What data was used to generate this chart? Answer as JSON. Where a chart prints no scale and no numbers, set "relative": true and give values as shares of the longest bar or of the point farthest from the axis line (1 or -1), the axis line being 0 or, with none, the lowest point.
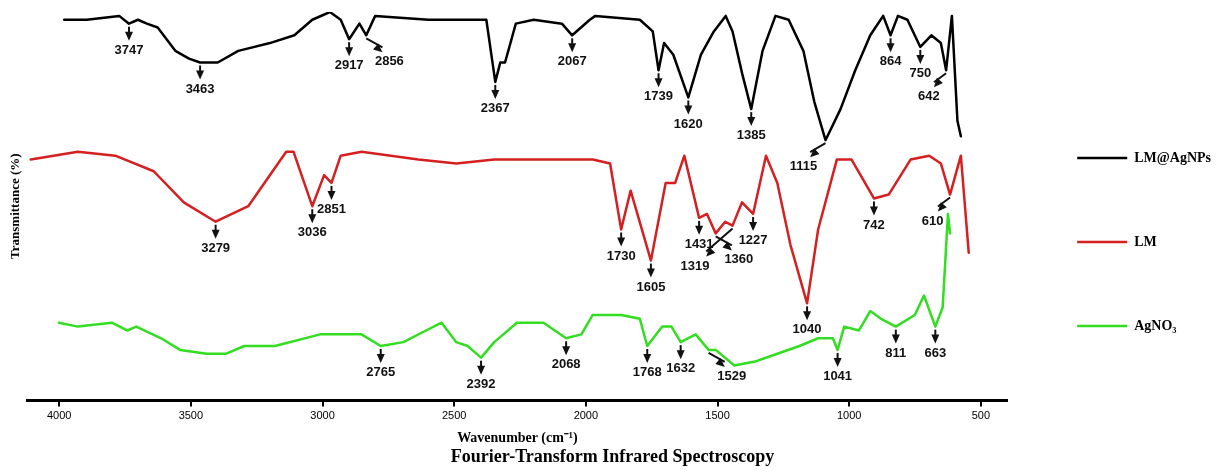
{
  "chart_data": {
    "type": "line",
    "title": "Fourier-Transform Infrared Spectroscopy",
    "xlabel": "Wavenumber (cm⁻¹)",
    "ylabel": "Transmittance (%)",
    "relative": true,
    "xlim": [
      4120,
      400
    ],
    "xticks": [
      4000,
      3500,
      3000,
      2500,
      2000,
      1500,
      1000,
      500
    ],
    "legend": "right",
    "marker": "none",
    "line_style": "solid",
    "series": [
      {
        "name": "LM@AgNPs",
        "color": "#000000",
        "x": [
          3981,
          3895,
          3772,
          3735,
          3701,
          3667,
          3626,
          3559,
          3507,
          3465,
          3398,
          3320,
          3200,
          3107,
          3039,
          2972,
          2931,
          2899,
          2860,
          2834,
          2800,
          2598,
          2378,
          2344,
          2325,
          2307,
          2266,
          2198,
          2091,
          2052,
          1985,
          1964,
          1795,
          1746,
          1724,
          1703,
          1668,
          1611,
          1563,
          1514,
          1469,
          1443,
          1406,
          1372,
          1329,
          1280,
          1230,
          1174,
          1133,
          1090,
          1033,
          977,
          920,
          871,
          843,
          815,
          779,
          730,
          688,
          652,
          632,
          610,
          589,
          576
        ],
        "values": [
          0.98,
          0.98,
          0.99,
          0.97,
          0.98,
          0.97,
          0.96,
          0.9,
          0.88,
          0.87,
          0.87,
          0.9,
          0.92,
          0.94,
          0.98,
          1.0,
          0.98,
          0.93,
          0.97,
          0.94,
          0.99,
          0.98,
          0.98,
          0.82,
          0.87,
          0.87,
          0.97,
          0.98,
          0.97,
          0.94,
          0.98,
          0.99,
          0.98,
          0.95,
          0.85,
          0.92,
          0.89,
          0.78,
          0.89,
          0.95,
          0.99,
          0.95,
          0.84,
          0.75,
          0.9,
          0.99,
          0.98,
          0.9,
          0.77,
          0.67,
          0.75,
          0.85,
          0.94,
          0.99,
          0.94,
          0.99,
          0.98,
          0.91,
          0.94,
          0.92,
          0.85,
          0.99,
          0.72,
          0.68
        ]
      },
      {
        "name": "LM",
        "color": "#d42020",
        "x": [
          4108,
          3929,
          3787,
          3641,
          3527,
          3406,
          3282,
          3138,
          3110,
          3039,
          2994,
          2966,
          2931,
          2852,
          2636,
          2492,
          2348,
          2204,
          1974,
          1908,
          1866,
          1830,
          1753,
          1697,
          1661,
          1626,
          1570,
          1540,
          1507,
          1471,
          1443,
          1407,
          1365,
          1316,
          1273,
          1223,
          1160,
          1118,
          1047,
          991,
          906,
          850,
          767,
          696,
          652,
          617,
          576,
          546
        ],
        "values": [
          0.62,
          0.64,
          0.63,
          0.59,
          0.51,
          0.46,
          0.5,
          0.64,
          0.64,
          0.5,
          0.58,
          0.56,
          0.63,
          0.64,
          0.62,
          0.61,
          0.62,
          0.62,
          0.62,
          0.61,
          0.44,
          0.54,
          0.36,
          0.56,
          0.56,
          0.63,
          0.47,
          0.48,
          0.43,
          0.46,
          0.45,
          0.51,
          0.48,
          0.63,
          0.56,
          0.4,
          0.25,
          0.44,
          0.62,
          0.62,
          0.52,
          0.53,
          0.62,
          0.63,
          0.61,
          0.53,
          0.63,
          0.38
        ]
      },
      {
        "name": "AgNO₃",
        "color": "#33dd22",
        "x": [
          4001,
          3929,
          3800,
          3742,
          3707,
          3613,
          3541,
          3440,
          3368,
          3297,
          3181,
          3009,
          2852,
          2779,
          2693,
          2607,
          2548,
          2492,
          2449,
          2398,
          2348,
          2262,
          2161,
          2075,
          2017,
          1974,
          1866,
          1795,
          1767,
          1710,
          1675,
          1640,
          1583,
          1534,
          1507,
          1436,
          1358,
          1273,
          1189,
          1118,
          1062,
          1044,
          1019,
          963,
          920,
          879,
          823,
          751,
          716,
          673,
          645,
          625,
          617
        ],
        "values": [
          0.2,
          0.19,
          0.2,
          0.18,
          0.19,
          0.16,
          0.13,
          0.12,
          0.12,
          0.14,
          0.14,
          0.17,
          0.17,
          0.14,
          0.15,
          0.18,
          0.2,
          0.15,
          0.14,
          0.11,
          0.15,
          0.2,
          0.2,
          0.16,
          0.17,
          0.22,
          0.22,
          0.21,
          0.14,
          0.19,
          0.19,
          0.15,
          0.17,
          0.13,
          0.13,
          0.09,
          0.1,
          0.12,
          0.14,
          0.16,
          0.16,
          0.13,
          0.19,
          0.18,
          0.23,
          0.21,
          0.19,
          0.22,
          0.27,
          0.19,
          0.24,
          0.48,
          0.43
        ]
      }
    ],
    "annotations": [
      {
        "text": "3747",
        "x": 3735,
        "y": 0.97
      },
      {
        "text": "3463",
        "x": 3465,
        "y": 0.87
      },
      {
        "text": "2917",
        "x": 2899,
        "y": 0.93
      },
      {
        "text": "2856",
        "x": 2834,
        "y": 0.94
      },
      {
        "text": "2367",
        "x": 2344,
        "y": 0.82
      },
      {
        "text": "2067",
        "x": 2052,
        "y": 0.94
      },
      {
        "text": "1739",
        "x": 1724,
        "y": 0.85
      },
      {
        "text": "1620",
        "x": 1611,
        "y": 0.78
      },
      {
        "text": "1385",
        "x": 1372,
        "y": 0.75
      },
      {
        "text": "1115",
        "x": 1090,
        "y": 0.67
      },
      {
        "text": "864",
        "x": 843,
        "y": 0.94
      },
      {
        "text": "750",
        "x": 730,
        "y": 0.91
      },
      {
        "text": "642",
        "x": 632,
        "y": 0.85
      },
      {
        "text": "3279",
        "x": 3406,
        "y": 0.46
      },
      {
        "text": "3036",
        "x": 3039,
        "y": 0.5
      },
      {
        "text": "2851",
        "x": 2966,
        "y": 0.56
      },
      {
        "text": "1730",
        "x": 1866,
        "y": 0.44
      },
      {
        "text": "1605",
        "x": 1753,
        "y": 0.36
      },
      {
        "text": "1431",
        "x": 1570,
        "y": 0.47
      },
      {
        "text": "1360",
        "x": 1507,
        "y": 0.43
      },
      {
        "text": "1319",
        "x": 1443,
        "y": 0.45
      },
      {
        "text": "1227",
        "x": 1365,
        "y": 0.48
      },
      {
        "text": "1040",
        "x": 1160,
        "y": 0.25
      },
      {
        "text": "742",
        "x": 906,
        "y": 0.52
      },
      {
        "text": "610",
        "x": 617,
        "y": 0.53
      },
      {
        "text": "2765",
        "x": 2779,
        "y": 0.14
      },
      {
        "text": "2392",
        "x": 2398,
        "y": 0.11
      },
      {
        "text": "2068",
        "x": 2075,
        "y": 0.16
      },
      {
        "text": "1768",
        "x": 1767,
        "y": 0.14
      },
      {
        "text": "1632",
        "x": 1640,
        "y": 0.15
      },
      {
        "text": "1529",
        "x": 1534,
        "y": 0.13
      },
      {
        "text": "1041",
        "x": 1044,
        "y": 0.13
      },
      {
        "text": "811",
        "x": 823,
        "y": 0.19
      },
      {
        "text": "663",
        "x": 673,
        "y": 0.19
      }
    ]
  }
}
